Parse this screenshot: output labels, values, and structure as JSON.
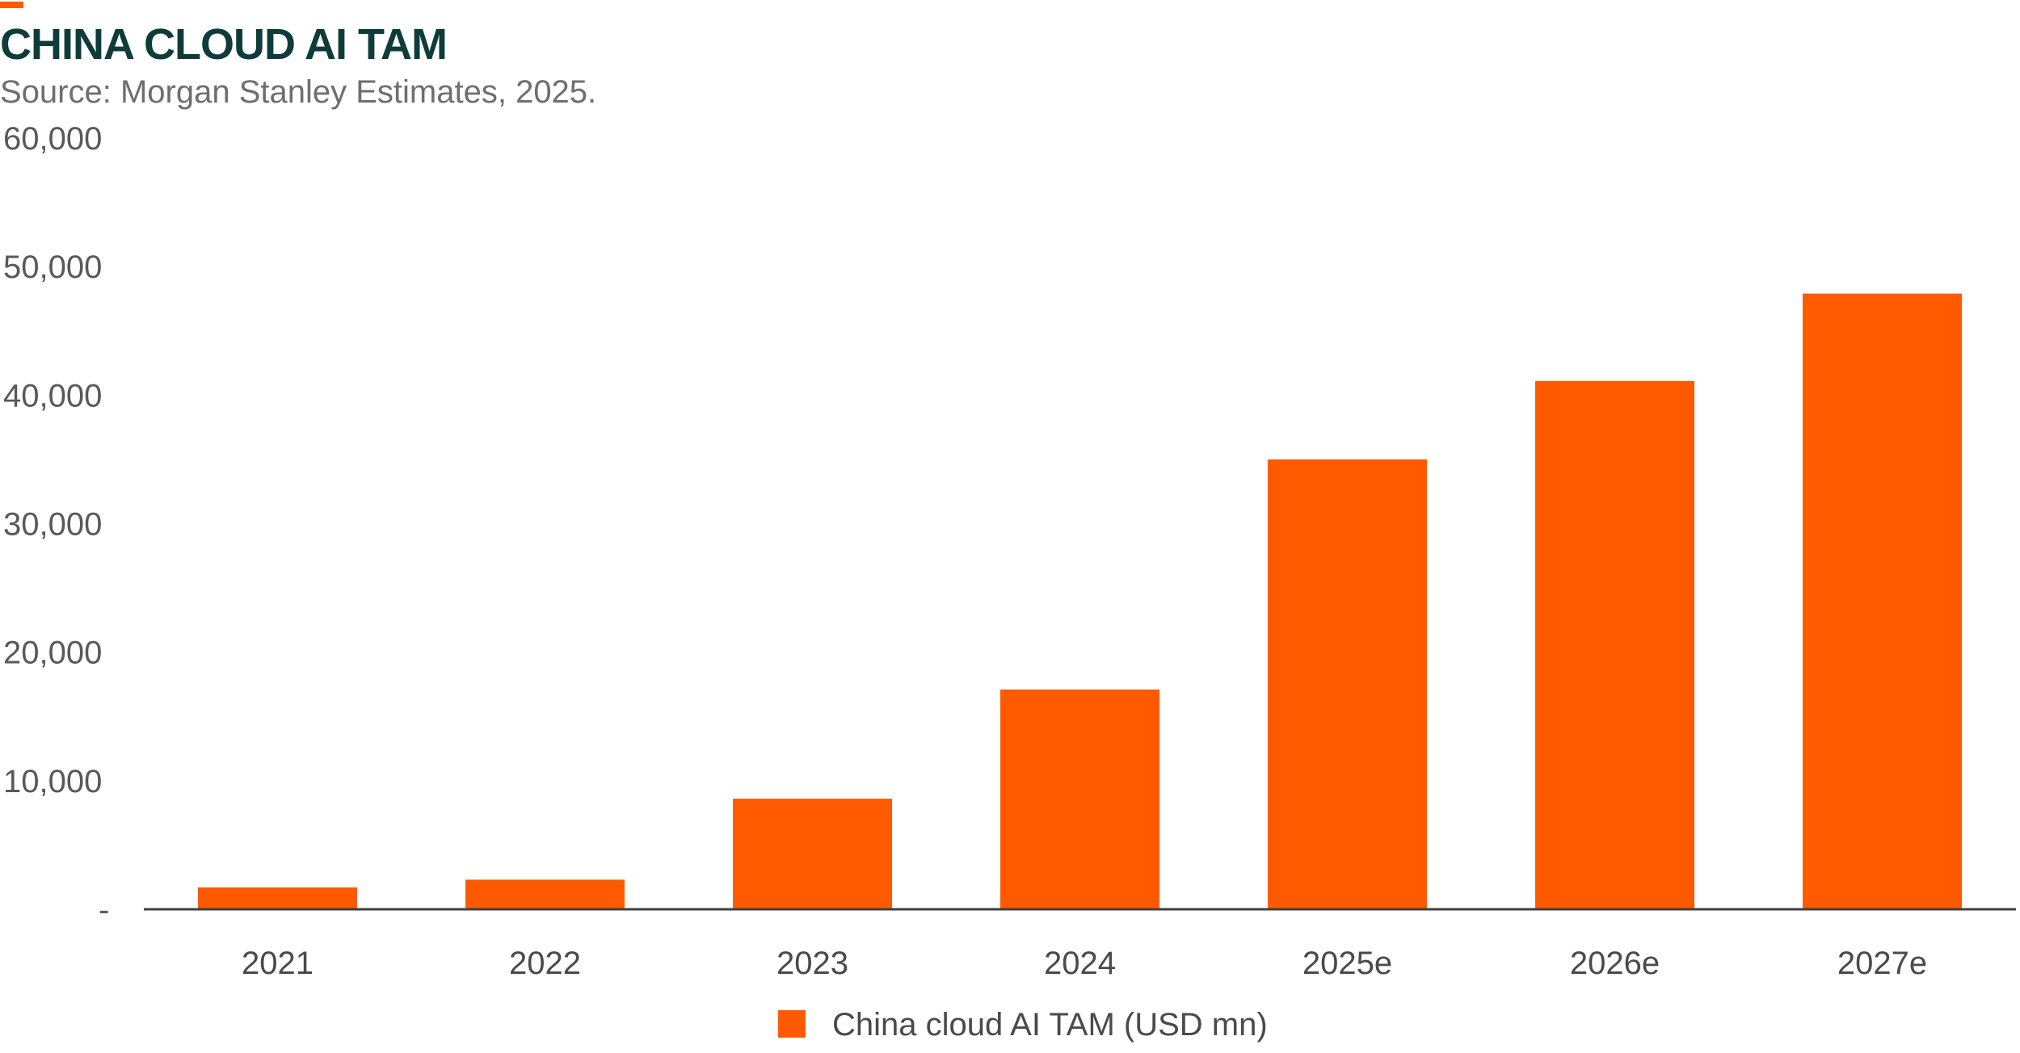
{
  "header": {
    "title": "CHINA CLOUD AI TAM",
    "subtitle": "Source: Morgan Stanley Estimates, 2025."
  },
  "colors": {
    "accent": "#FF5A00",
    "bar": "#FF5A00",
    "title": "#0F3B3B",
    "axis": "#404040"
  },
  "chart_data": {
    "type": "bar",
    "title": "CHINA CLOUD AI TAM",
    "subtitle": "Source: Morgan Stanley Estimates, 2025.",
    "categories": [
      "2021",
      "2022",
      "2023",
      "2024",
      "2025e",
      "2026e",
      "2027e"
    ],
    "series": [
      {
        "name": "China cloud AI TAM (USD mn)",
        "values": [
          1700,
          2300,
          8600,
          17100,
          35000,
          41100,
          47900
        ]
      }
    ],
    "yticks": [
      "-",
      "10,000",
      "20,000",
      "30,000",
      "40,000",
      "50,000",
      "60,000"
    ],
    "ylim": [
      0,
      60000
    ],
    "grid": false,
    "legend": "bottom-center"
  }
}
